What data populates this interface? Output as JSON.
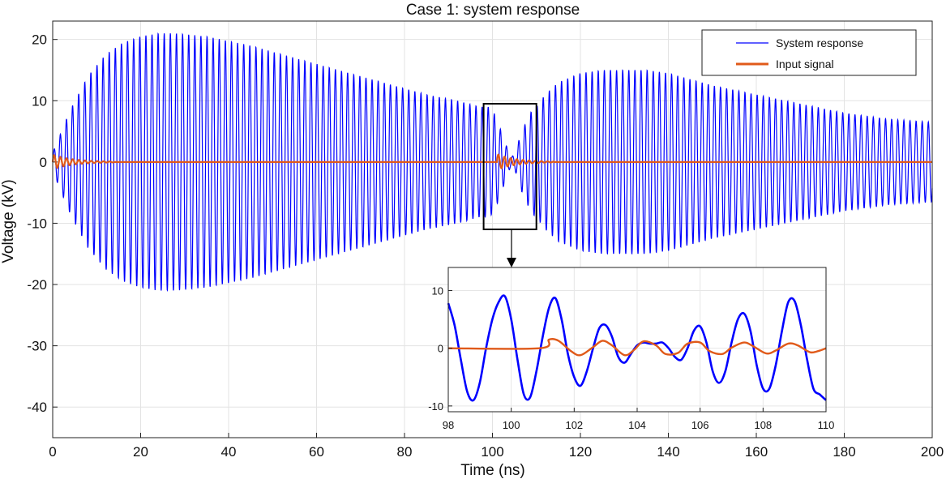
{
  "chart_data": {
    "type": "line",
    "title": "Case 1: system response",
    "xlabel": "Time (ns)",
    "ylabel": "Voltage (kV)",
    "xlim": [
      0,
      200
    ],
    "ylim": [
      -45,
      23
    ],
    "xticks": [
      0,
      20,
      40,
      60,
      80,
      100,
      120,
      140,
      160,
      180,
      200
    ],
    "yticks": [
      -40,
      -30,
      -20,
      -10,
      0,
      10,
      20
    ],
    "grid": true,
    "legend": {
      "position": "top-right"
    },
    "series": [
      {
        "name": "System response",
        "color": "#0000ff",
        "style": "oscillation",
        "period_ns": 1.39,
        "envelope": {
          "t": [
            0,
            2,
            4,
            8,
            12,
            16,
            20,
            24,
            28,
            35,
            45,
            55,
            65,
            75,
            85,
            92,
            97,
            98,
            99,
            100,
            101,
            102,
            103,
            104,
            105,
            106,
            107,
            108,
            109,
            110,
            112,
            115,
            120,
            125,
            130,
            135,
            140,
            145,
            150,
            160,
            170,
            180,
            190,
            200
          ],
          "amp": [
            1.5,
            5,
            8.5,
            14,
            17.5,
            19.5,
            20.5,
            21,
            21,
            20.5,
            19,
            17,
            15,
            13,
            11,
            10,
            9,
            9,
            9,
            8.5,
            7,
            5,
            3,
            1,
            1,
            3.5,
            5.5,
            7,
            8.5,
            9,
            11,
            13,
            14.5,
            15,
            15,
            15,
            14.5,
            13.5,
            12.5,
            11,
            9.5,
            8,
            7,
            6.5
          ]
        }
      },
      {
        "name": "Input signal",
        "color": "#e05a1a",
        "style": "pulse-trains",
        "period_ns": 1.4,
        "bursts": [
          {
            "start": 0,
            "end": 14,
            "peak": 1.2
          },
          {
            "start": 101,
            "end": 114,
            "peak": 1.3
          }
        ]
      }
    ],
    "inset": {
      "xlim": [
        98,
        110
      ],
      "ylim": [
        -11,
        14
      ],
      "xticks": [
        98,
        100,
        102,
        104,
        106,
        108,
        110
      ],
      "yticks": [
        -10,
        0,
        10
      ],
      "zoom_box": {
        "x_range": [
          98,
          110
        ],
        "y_range": [
          -11,
          9.5
        ]
      },
      "series": [
        {
          "name": "System response",
          "points": [
            [
              98,
              7.8
            ],
            [
              98.2,
              4
            ],
            [
              98.4,
              -2
            ],
            [
              98.6,
              -7.5
            ],
            [
              98.8,
              -9
            ],
            [
              99.0,
              -6
            ],
            [
              99.2,
              0
            ],
            [
              99.4,
              5
            ],
            [
              99.6,
              8
            ],
            [
              99.8,
              9
            ],
            [
              100.0,
              5
            ],
            [
              100.2,
              -2
            ],
            [
              100.4,
              -8
            ],
            [
              100.6,
              -8.5
            ],
            [
              100.8,
              -4
            ],
            [
              101.0,
              2
            ],
            [
              101.2,
              7
            ],
            [
              101.4,
              8.7
            ],
            [
              101.6,
              5
            ],
            [
              101.8,
              -1
            ],
            [
              102.0,
              -5
            ],
            [
              102.2,
              -6.5
            ],
            [
              102.4,
              -4
            ],
            [
              102.6,
              0
            ],
            [
              102.8,
              3.5
            ],
            [
              103.0,
              4
            ],
            [
              103.2,
              2
            ],
            [
              103.4,
              -1.5
            ],
            [
              103.6,
              -2.5
            ],
            [
              103.8,
              -1
            ],
            [
              104.0,
              0.5
            ],
            [
              104.2,
              1
            ],
            [
              104.4,
              0.8
            ],
            [
              104.6,
              0.8
            ],
            [
              104.8,
              1
            ],
            [
              105.0,
              0
            ],
            [
              105.2,
              -1.5
            ],
            [
              105.4,
              -2
            ],
            [
              105.6,
              0
            ],
            [
              105.8,
              3
            ],
            [
              106.0,
              3.8
            ],
            [
              106.2,
              1
            ],
            [
              106.4,
              -4
            ],
            [
              106.6,
              -6
            ],
            [
              106.8,
              -4
            ],
            [
              107.0,
              1
            ],
            [
              107.2,
              5
            ],
            [
              107.4,
              6
            ],
            [
              107.6,
              3
            ],
            [
              107.8,
              -3
            ],
            [
              108.0,
              -7
            ],
            [
              108.2,
              -7
            ],
            [
              108.4,
              -3
            ],
            [
              108.6,
              3
            ],
            [
              108.8,
              8
            ],
            [
              109.0,
              8.2
            ],
            [
              109.2,
              4
            ],
            [
              109.4,
              -2
            ],
            [
              109.6,
              -7
            ],
            [
              109.8,
              -8
            ],
            [
              110.0,
              -9
            ]
          ]
        },
        {
          "name": "Input signal",
          "points": [
            [
              98,
              0
            ],
            [
              100.9,
              0
            ],
            [
              101.2,
              1.5
            ],
            [
              101.5,
              1.3
            ],
            [
              101.9,
              -0.5
            ],
            [
              102.2,
              -1.2
            ],
            [
              102.6,
              0.2
            ],
            [
              102.9,
              1.3
            ],
            [
              103.2,
              0.5
            ],
            [
              103.6,
              -1.2
            ],
            [
              103.9,
              -0.3
            ],
            [
              104.2,
              1.2
            ],
            [
              104.6,
              0.5
            ],
            [
              104.9,
              -1
            ],
            [
              105.3,
              -0.8
            ],
            [
              105.6,
              0.8
            ],
            [
              106.0,
              1
            ],
            [
              106.3,
              -0.5
            ],
            [
              106.7,
              -1
            ],
            [
              107.0,
              0.1
            ],
            [
              107.4,
              1
            ],
            [
              107.7,
              0.3
            ],
            [
              108.1,
              -0.9
            ],
            [
              108.4,
              -0.4
            ],
            [
              108.8,
              0.8
            ],
            [
              109.1,
              0.5
            ],
            [
              109.5,
              -0.7
            ],
            [
              109.8,
              -0.4
            ],
            [
              110,
              0
            ]
          ]
        }
      ]
    }
  }
}
